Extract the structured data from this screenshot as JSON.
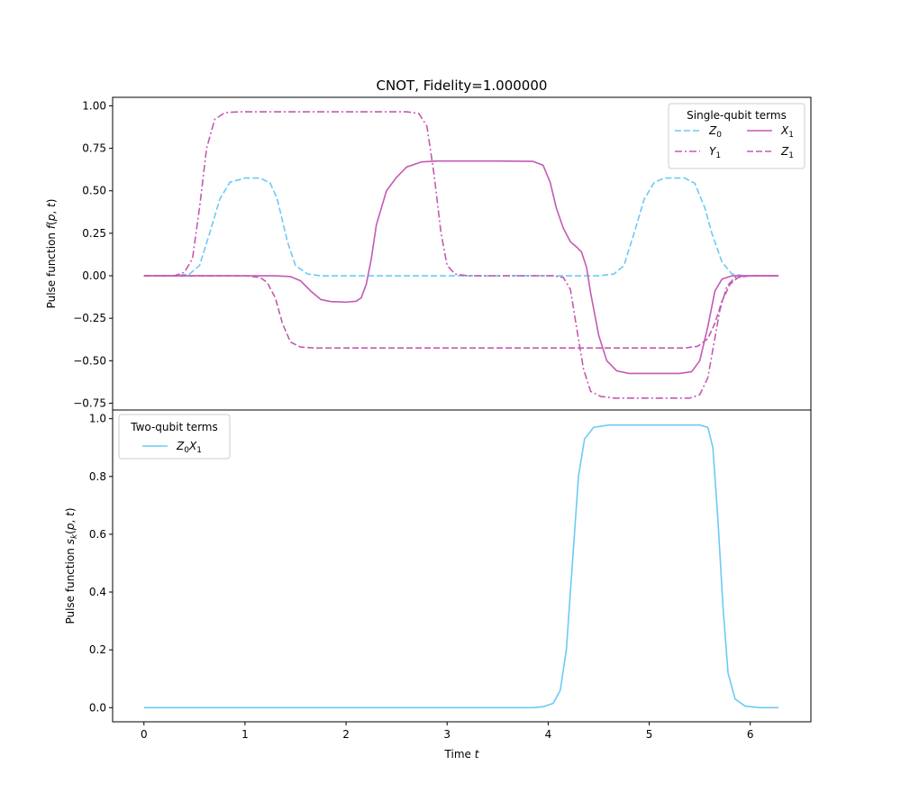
{
  "chart_data": [
    {
      "type": "line",
      "title": "CNOT, Fidelity=1.000000",
      "xlabel": "",
      "ylabel": "Pulse function f(p, t)",
      "xlim": [
        -0.31,
        6.6
      ],
      "ylim": [
        -0.79,
        1.05
      ],
      "xticks": [
        0,
        1,
        2,
        3,
        4,
        5,
        6
      ],
      "yticks": [
        1.0,
        0.75,
        0.5,
        0.25,
        0.0,
        -0.25,
        -0.5,
        -0.75
      ],
      "ytick_labels": [
        "1.00",
        "0.75",
        "0.50",
        "0.25",
        "0.00",
        "−0.25",
        "−0.50",
        "−0.75"
      ],
      "legend": {
        "title": "Single-qubit terms",
        "location": "upper right",
        "columns": 2
      },
      "series": [
        {
          "name": "Z₀",
          "sym": "Z",
          "sub": "0",
          "color": "#6ccaf5",
          "dash": "dashed",
          "points": [
            [
              0,
              0
            ],
            [
              0.3,
              0
            ],
            [
              0.45,
              0.01
            ],
            [
              0.55,
              0.06
            ],
            [
              0.65,
              0.25
            ],
            [
              0.75,
              0.45
            ],
            [
              0.85,
              0.55
            ],
            [
              1.0,
              0.575
            ],
            [
              1.15,
              0.575
            ],
            [
              1.25,
              0.545
            ],
            [
              1.32,
              0.45
            ],
            [
              1.42,
              0.2
            ],
            [
              1.5,
              0.06
            ],
            [
              1.62,
              0.01
            ],
            [
              1.75,
              0
            ],
            [
              4.5,
              0
            ],
            [
              4.65,
              0.01
            ],
            [
              4.75,
              0.06
            ],
            [
              4.85,
              0.25
            ],
            [
              4.95,
              0.45
            ],
            [
              5.05,
              0.55
            ],
            [
              5.15,
              0.575
            ],
            [
              5.35,
              0.575
            ],
            [
              5.45,
              0.545
            ],
            [
              5.55,
              0.4
            ],
            [
              5.62,
              0.25
            ],
            [
              5.72,
              0.08
            ],
            [
              5.82,
              0.01
            ],
            [
              5.95,
              0
            ],
            [
              6.28,
              0
            ]
          ]
        },
        {
          "name": "X₁",
          "sym": "X",
          "sub": "1",
          "color": "#c45ab3",
          "dash": "solid",
          "points": [
            [
              0,
              0
            ],
            [
              1.3,
              0
            ],
            [
              1.45,
              -0.005
            ],
            [
              1.55,
              -0.03
            ],
            [
              1.65,
              -0.09
            ],
            [
              1.75,
              -0.14
            ],
            [
              1.85,
              -0.152
            ],
            [
              2.0,
              -0.155
            ],
            [
              2.1,
              -0.15
            ],
            [
              2.15,
              -0.13
            ],
            [
              2.2,
              -0.05
            ],
            [
              2.25,
              0.1
            ],
            [
              2.3,
              0.3
            ],
            [
              2.4,
              0.5
            ],
            [
              2.5,
              0.58
            ],
            [
              2.6,
              0.64
            ],
            [
              2.75,
              0.67
            ],
            [
              2.9,
              0.675
            ],
            [
              3.5,
              0.675
            ],
            [
              3.85,
              0.673
            ],
            [
              3.95,
              0.65
            ],
            [
              4.02,
              0.55
            ],
            [
              4.08,
              0.4
            ],
            [
              4.15,
              0.28
            ],
            [
              4.22,
              0.2
            ],
            [
              4.28,
              0.17
            ],
            [
              4.33,
              0.14
            ],
            [
              4.38,
              0.05
            ],
            [
              4.42,
              -0.1
            ],
            [
              4.5,
              -0.35
            ],
            [
              4.58,
              -0.5
            ],
            [
              4.68,
              -0.56
            ],
            [
              4.8,
              -0.575
            ],
            [
              5.3,
              -0.575
            ],
            [
              5.42,
              -0.565
            ],
            [
              5.5,
              -0.5
            ],
            [
              5.58,
              -0.3
            ],
            [
              5.65,
              -0.09
            ],
            [
              5.72,
              -0.02
            ],
            [
              5.82,
              0
            ],
            [
              6.28,
              0
            ]
          ]
        },
        {
          "name": "Y₁",
          "sym": "Y",
          "sub": "1",
          "color": "#c45ab3",
          "dash": "dashdot",
          "points": [
            [
              0,
              0
            ],
            [
              0.3,
              0
            ],
            [
              0.4,
              0.02
            ],
            [
              0.48,
              0.1
            ],
            [
              0.55,
              0.4
            ],
            [
              0.62,
              0.75
            ],
            [
              0.7,
              0.92
            ],
            [
              0.8,
              0.96
            ],
            [
              0.95,
              0.965
            ],
            [
              2.6,
              0.965
            ],
            [
              2.72,
              0.955
            ],
            [
              2.8,
              0.88
            ],
            [
              2.87,
              0.6
            ],
            [
              2.94,
              0.25
            ],
            [
              3.0,
              0.06
            ],
            [
              3.08,
              0.01
            ],
            [
              3.2,
              0
            ],
            [
              4.05,
              0
            ],
            [
              4.15,
              -0.01
            ],
            [
              4.22,
              -0.08
            ],
            [
              4.28,
              -0.3
            ],
            [
              4.35,
              -0.55
            ],
            [
              4.42,
              -0.68
            ],
            [
              4.52,
              -0.71
            ],
            [
              4.65,
              -0.72
            ],
            [
              5.4,
              -0.72
            ],
            [
              5.5,
              -0.7
            ],
            [
              5.58,
              -0.6
            ],
            [
              5.64,
              -0.4
            ],
            [
              5.7,
              -0.2
            ],
            [
              5.77,
              -0.06
            ],
            [
              5.85,
              -0.01
            ],
            [
              5.95,
              0
            ],
            [
              6.28,
              0
            ]
          ]
        },
        {
          "name": "Z₁",
          "sym": "Z",
          "sub": "1",
          "color": "#c45ab3",
          "dash": "dashed",
          "points": [
            [
              0,
              0
            ],
            [
              1.0,
              0
            ],
            [
              1.15,
              -0.01
            ],
            [
              1.22,
              -0.04
            ],
            [
              1.3,
              -0.13
            ],
            [
              1.37,
              -0.28
            ],
            [
              1.45,
              -0.39
            ],
            [
              1.55,
              -0.42
            ],
            [
              1.7,
              -0.425
            ],
            [
              5.35,
              -0.425
            ],
            [
              5.48,
              -0.415
            ],
            [
              5.58,
              -0.37
            ],
            [
              5.65,
              -0.28
            ],
            [
              5.72,
              -0.15
            ],
            [
              5.8,
              -0.05
            ],
            [
              5.88,
              -0.01
            ],
            [
              6.0,
              0
            ],
            [
              6.28,
              0
            ]
          ]
        }
      ]
    },
    {
      "type": "line",
      "title": "",
      "xlabel": "Time t",
      "ylabel": "Pulse function s_k(p, t)",
      "xlim": [
        -0.31,
        6.6
      ],
      "ylim": [
        -0.049,
        1.03
      ],
      "xticks": [
        0,
        1,
        2,
        3,
        4,
        5,
        6
      ],
      "yticks": [
        0.0,
        0.2,
        0.4,
        0.6,
        0.8,
        1.0
      ],
      "ytick_labels": [
        "0.0",
        "0.2",
        "0.4",
        "0.6",
        "0.8",
        "1.0"
      ],
      "legend": {
        "title": "Two-qubit terms",
        "location": "upper left",
        "columns": 1
      },
      "series": [
        {
          "name": "Z₀X₁",
          "sym": "Z0X1",
          "color": "#6ccaf5",
          "dash": "solid",
          "points": [
            [
              0,
              0
            ],
            [
              3.85,
              0
            ],
            [
              3.95,
              0.003
            ],
            [
              4.05,
              0.015
            ],
            [
              4.12,
              0.06
            ],
            [
              4.18,
              0.2
            ],
            [
              4.24,
              0.5
            ],
            [
              4.3,
              0.8
            ],
            [
              4.36,
              0.93
            ],
            [
              4.45,
              0.97
            ],
            [
              4.6,
              0.978
            ],
            [
              5.5,
              0.978
            ],
            [
              5.58,
              0.97
            ],
            [
              5.63,
              0.9
            ],
            [
              5.68,
              0.65
            ],
            [
              5.73,
              0.35
            ],
            [
              5.78,
              0.12
            ],
            [
              5.85,
              0.03
            ],
            [
              5.95,
              0.005
            ],
            [
              6.1,
              0
            ],
            [
              6.28,
              0
            ]
          ]
        }
      ]
    }
  ]
}
